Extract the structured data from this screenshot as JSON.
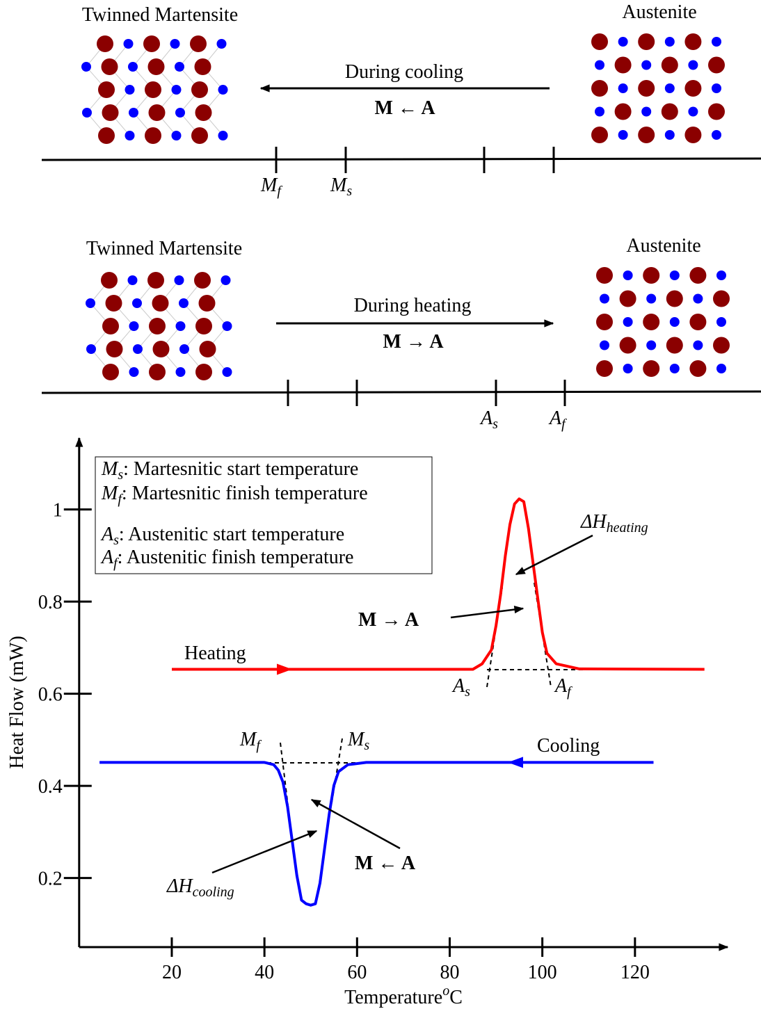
{
  "panels": [
    {
      "left_label": "Twinned Martensite",
      "right_label": "Austenite",
      "process": "During cooling",
      "reaction": "M ← A",
      "tick_labels": [
        {
          "symbol": "M",
          "sub": "f"
        },
        {
          "symbol": "M",
          "sub": "s"
        },
        null,
        null
      ]
    },
    {
      "left_label": "Twinned Martensite",
      "right_label": "Austenite",
      "process": "During heating",
      "reaction": "M → A",
      "tick_labels": [
        null,
        null,
        {
          "symbol": "A",
          "sub": "s"
        },
        {
          "symbol": "A",
          "sub": "f"
        }
      ]
    }
  ],
  "chart_data": {
    "type": "line",
    "x_label": {
      "text": "Temperature",
      "sup": "o",
      "unit": "C"
    },
    "y_label": "Heat Flow (mW)",
    "xlim": [
      0,
      140
    ],
    "ylim": [
      0.05,
      1.155
    ],
    "xticks": [
      20,
      40,
      60,
      80,
      100,
      120
    ],
    "yticks": [
      0.2,
      0.4,
      0.6,
      0.8,
      1
    ],
    "series": [
      {
        "name": "Heating",
        "color": "#ff0000",
        "x": [
          20,
          85,
          87,
          89,
          90,
          91,
          92,
          93,
          94,
          95,
          96,
          97,
          98,
          99,
          100,
          101,
          103,
          108,
          135
        ],
        "values": [
          0.653,
          0.653,
          0.665,
          0.695,
          0.748,
          0.816,
          0.899,
          0.967,
          1.012,
          1.023,
          1.017,
          0.959,
          0.884,
          0.808,
          0.733,
          0.688,
          0.665,
          0.654,
          0.653
        ]
      },
      {
        "name": "Cooling",
        "color": "#0000ff",
        "x": [
          4.4,
          40,
          42,
          43,
          44,
          45,
          46,
          47,
          48,
          49,
          50,
          51,
          52,
          53,
          54,
          55,
          56,
          58,
          62,
          124
        ],
        "values": [
          0.451,
          0.451,
          0.446,
          0.434,
          0.408,
          0.355,
          0.28,
          0.205,
          0.152,
          0.144,
          0.141,
          0.144,
          0.189,
          0.265,
          0.34,
          0.401,
          0.431,
          0.446,
          0.451,
          0.451
        ]
      }
    ],
    "legend_box": [
      {
        "symbol": "M",
        "sub": "s",
        "text": ": Martesnitic start temperature"
      },
      {
        "symbol": "M",
        "sub": "f",
        "text": ": Martesnitic finish temperature"
      },
      {
        "symbol": "A",
        "sub": "s",
        "text": ": Austenitic start temperature"
      },
      {
        "symbol": "A",
        "sub": "f",
        "text": ": Austenitic finish temperature"
      }
    ],
    "annotations": {
      "heating_enthalpy": {
        "base": "ΔH",
        "sub": "heating"
      },
      "cooling_enthalpy": {
        "base": "ΔH",
        "sub": "cooling"
      },
      "heating_reaction": "M → A",
      "cooling_reaction": "M ← A",
      "points": [
        {
          "symbol": "A",
          "sub": "s"
        },
        {
          "symbol": "A",
          "sub": "f"
        },
        {
          "symbol": "M",
          "sub": "f"
        },
        {
          "symbol": "M",
          "sub": "s"
        }
      ]
    }
  }
}
